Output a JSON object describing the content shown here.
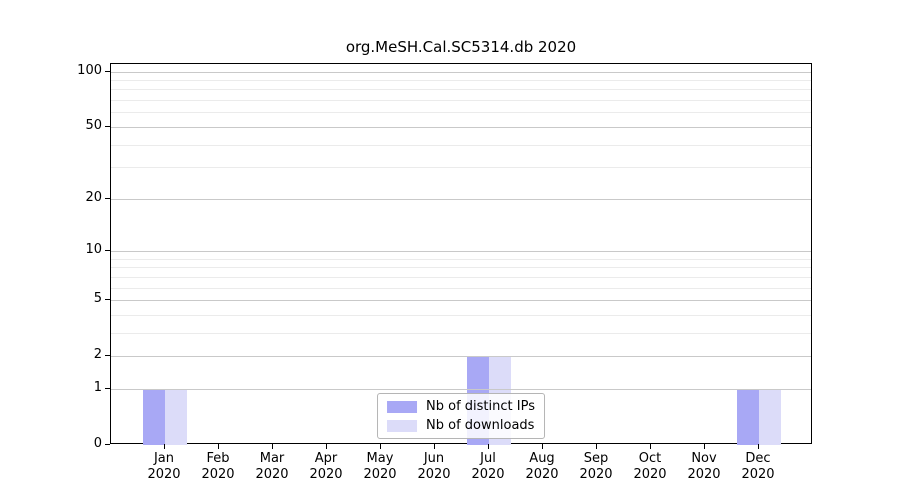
{
  "chart_data": {
    "type": "bar",
    "title": "org.MeSH.Cal.SC5314.db 2020",
    "y_scale": "log1p",
    "y_max": 110,
    "y_ticks": [
      0,
      1,
      2,
      5,
      10,
      20,
      50,
      100
    ],
    "y_minor_ticks": [
      3,
      4,
      6,
      7,
      8,
      9,
      30,
      40,
      60,
      70,
      80,
      90
    ],
    "categories": [
      "Jan",
      "Feb",
      "Mar",
      "Apr",
      "May",
      "Jun",
      "Jul",
      "Aug",
      "Sep",
      "Oct",
      "Nov",
      "Dec"
    ],
    "year_label": "2020",
    "series": [
      {
        "name": "Nb of distinct IPs",
        "color": "#a8a8f5",
        "values": [
          1,
          0,
          0,
          0,
          0,
          0,
          2,
          0,
          0,
          0,
          0,
          1
        ]
      },
      {
        "name": "Nb of downloads",
        "color": "#dcdcf9",
        "values": [
          1,
          0,
          0,
          0,
          0,
          0,
          2,
          0,
          0,
          0,
          0,
          1
        ]
      }
    ],
    "legend_position": "lower center",
    "grid": true,
    "colors": {
      "grid_major": "#c9c9c9",
      "grid_minor": "#ebebeb",
      "axis": "#000000",
      "background": "#ffffff"
    }
  }
}
